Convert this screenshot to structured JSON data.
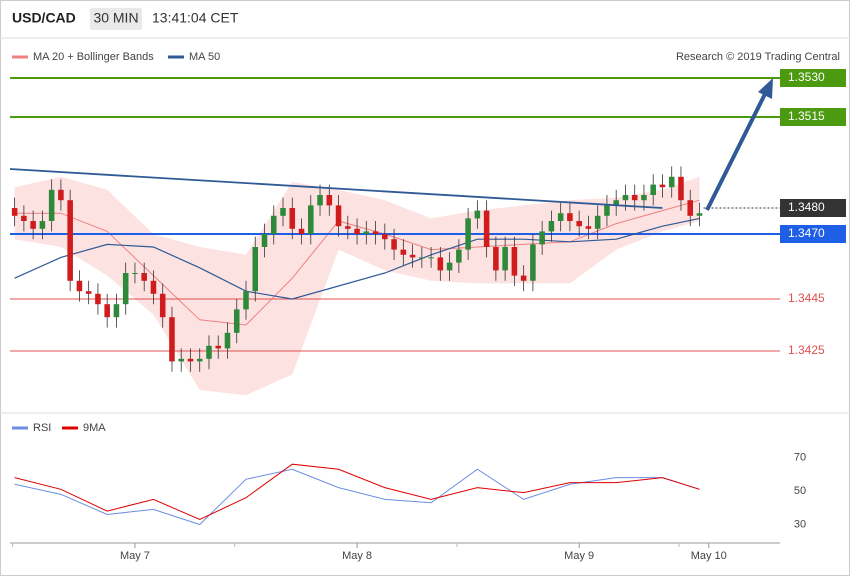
{
  "chart_data": [
    {
      "type": "candlestick",
      "title": "USD/CAD",
      "timeframe": "30 MIN",
      "time": "13:41:04 CET",
      "credit": "Research © 2019 Trading Central",
      "xlim": [
        -0.5,
        82.7
      ],
      "ylim": [
        1.3402,
        1.356
      ],
      "up_color": "#2e8a3a",
      "down_color": "#d01c1c",
      "open": [
        1.348,
        1.3477,
        1.3475,
        1.3472,
        1.3475,
        1.3487,
        1.3483,
        1.3452,
        1.3448,
        1.3447,
        1.3443,
        1.3438,
        1.3443,
        1.3455,
        1.3455,
        1.3452,
        1.3447,
        1.3438,
        1.3421,
        1.3422,
        1.3421,
        1.3422,
        1.3427,
        1.3426,
        1.3432,
        1.3441,
        1.3448,
        1.3465,
        1.347,
        1.3477,
        1.348,
        1.3472,
        1.347,
        1.3481,
        1.3485,
        1.3481,
        1.3473,
        1.3472,
        1.347,
        1.3471,
        1.347,
        1.3468,
        1.3464,
        1.3462,
        1.3461,
        1.3461,
        1.3461,
        1.3456,
        1.3459,
        1.3464,
        1.3476,
        1.3479,
        1.3465,
        1.3456,
        1.3465,
        1.3454,
        1.3452,
        1.3466,
        1.3471,
        1.3475,
        1.3478,
        1.3475,
        1.3473,
        1.3472,
        1.3477,
        1.3481,
        1.3483,
        1.3485,
        1.3483,
        1.3485,
        1.3489,
        1.3488,
        1.3492,
        1.3483,
        1.3477
      ],
      "high": [
        1.3484,
        1.3481,
        1.3479,
        1.3479,
        1.3491,
        1.3491,
        1.3487,
        1.3456,
        1.3452,
        1.3451,
        1.3447,
        1.3447,
        1.3459,
        1.3459,
        1.3459,
        1.3456,
        1.3451,
        1.3442,
        1.3426,
        1.3426,
        1.3426,
        1.3431,
        1.3431,
        1.3436,
        1.3445,
        1.3452,
        1.3469,
        1.3474,
        1.3481,
        1.3484,
        1.3484,
        1.3476,
        1.3485,
        1.3489,
        1.3489,
        1.3485,
        1.3477,
        1.3476,
        1.3475,
        1.3475,
        1.3474,
        1.3472,
        1.3468,
        1.3466,
        1.3465,
        1.3465,
        1.3465,
        1.3463,
        1.3468,
        1.348,
        1.3483,
        1.3483,
        1.3469,
        1.3469,
        1.3469,
        1.3458,
        1.347,
        1.3475,
        1.3479,
        1.3482,
        1.3482,
        1.3479,
        1.3477,
        1.3481,
        1.3485,
        1.3487,
        1.3489,
        1.3489,
        1.3489,
        1.3493,
        1.3493,
        1.3496,
        1.3496,
        1.3487,
        1.3482
      ],
      "low": [
        1.3473,
        1.3471,
        1.3468,
        1.3468,
        1.3471,
        1.3479,
        1.3448,
        1.3444,
        1.3443,
        1.3439,
        1.3434,
        1.3434,
        1.3439,
        1.3451,
        1.3448,
        1.3443,
        1.3434,
        1.3417,
        1.3417,
        1.3417,
        1.3417,
        1.3418,
        1.3422,
        1.3422,
        1.3428,
        1.3437,
        1.3444,
        1.3461,
        1.3466,
        1.3473,
        1.3468,
        1.3466,
        1.3466,
        1.3477,
        1.3477,
        1.3469,
        1.3468,
        1.3466,
        1.3466,
        1.3466,
        1.3464,
        1.346,
        1.3458,
        1.3457,
        1.3457,
        1.3457,
        1.3452,
        1.3452,
        1.3455,
        1.346,
        1.3472,
        1.3461,
        1.3452,
        1.3452,
        1.345,
        1.3448,
        1.3448,
        1.3462,
        1.3467,
        1.3471,
        1.3471,
        1.3469,
        1.3468,
        1.3468,
        1.3473,
        1.3477,
        1.3479,
        1.3479,
        1.3479,
        1.3481,
        1.3484,
        1.3484,
        1.3479,
        1.3473,
        1.3473
      ],
      "close": [
        1.3477,
        1.3475,
        1.3472,
        1.3475,
        1.3487,
        1.3483,
        1.3452,
        1.3448,
        1.3447,
        1.3443,
        1.3438,
        1.3443,
        1.3455,
        1.3455,
        1.3452,
        1.3447,
        1.3438,
        1.3421,
        1.3422,
        1.3421,
        1.3422,
        1.3427,
        1.3426,
        1.3432,
        1.3441,
        1.3448,
        1.3465,
        1.347,
        1.3477,
        1.348,
        1.3472,
        1.347,
        1.3481,
        1.3485,
        1.3481,
        1.3473,
        1.3472,
        1.347,
        1.3471,
        1.347,
        1.3468,
        1.3464,
        1.3462,
        1.3461,
        1.3461,
        1.3461,
        1.3456,
        1.3459,
        1.3464,
        1.3476,
        1.3479,
        1.3465,
        1.3456,
        1.3465,
        1.3454,
        1.3452,
        1.3466,
        1.3471,
        1.3475,
        1.3478,
        1.3475,
        1.3473,
        1.3472,
        1.3477,
        1.3481,
        1.3483,
        1.3485,
        1.3483,
        1.3485,
        1.3489,
        1.3488,
        1.3492,
        1.3483,
        1.3477,
        1.3478
      ],
      "bands": {
        "name": "MA 20 + Bollinger Bands",
        "color": "#f08080",
        "fill": "#fde2e2",
        "x": [
          0,
          5,
          10,
          15,
          20,
          25,
          30,
          35,
          40,
          45,
          50,
          55,
          60,
          65,
          70,
          74
        ],
        "values": [
          1.3478,
          1.3478,
          1.3471,
          1.3454,
          1.3437,
          1.3435,
          1.3453,
          1.3475,
          1.347,
          1.3464,
          1.3465,
          1.3466,
          1.3467,
          1.3474,
          1.3479,
          1.3483
        ],
        "upper": [
          1.3488,
          1.3492,
          1.3487,
          1.347,
          1.3465,
          1.3462,
          1.349,
          1.3487,
          1.3483,
          1.3476,
          1.3479,
          1.3481,
          1.3483,
          1.3484,
          1.3487,
          1.3492
        ],
        "lower": [
          1.3468,
          1.3465,
          1.3454,
          1.3439,
          1.341,
          1.3408,
          1.3416,
          1.3464,
          1.3456,
          1.3452,
          1.3451,
          1.3451,
          1.3451,
          1.3464,
          1.3471,
          1.3475
        ]
      },
      "series": [
        {
          "name": "MA 50",
          "color": "#2f5a96",
          "x": [
            0,
            5,
            10,
            15,
            20,
            25,
            30,
            35,
            40,
            45,
            50,
            55,
            60,
            65,
            70,
            74
          ],
          "values": [
            1.3453,
            1.3461,
            1.3466,
            1.3465,
            1.3457,
            1.3448,
            1.3445,
            1.345,
            1.3455,
            1.3462,
            1.3468,
            1.3468,
            1.3467,
            1.3468,
            1.3473,
            1.3476
          ]
        }
      ],
      "trendline": {
        "color": "#2f5a96",
        "x": [
          -0.5,
          70
        ],
        "values": [
          1.3495,
          1.348
        ]
      },
      "levels": [
        {
          "value": 1.353,
          "label": "1.3530",
          "color": "#4c9a10",
          "style": "box",
          "line": "solid"
        },
        {
          "value": 1.3515,
          "label": "1.3515",
          "color": "#4c9a10",
          "style": "box",
          "line": "solid"
        },
        {
          "value": 1.348,
          "label": "1.3480",
          "color": "#333333",
          "style": "box",
          "line": "dotted"
        },
        {
          "value": 1.347,
          "label": "1.3470",
          "color": "#1f5fe6",
          "style": "box",
          "line": "solid"
        },
        {
          "value": 1.3445,
          "label": "1.3445",
          "color": "#e05050",
          "style": "text",
          "line": "solid"
        },
        {
          "value": 1.3425,
          "label": "1.3425",
          "color": "#e05050",
          "style": "text",
          "line": "solid"
        }
      ]
    },
    {
      "type": "line",
      "xlim": [
        -0.5,
        82.7
      ],
      "ylim": [
        20,
        80
      ],
      "yticks": [
        30,
        50,
        70
      ],
      "xticks": [
        {
          "value": 13,
          "label": "May 7"
        },
        {
          "value": 37,
          "label": "May 8"
        },
        {
          "value": 61,
          "label": "May 9"
        },
        {
          "value": 75,
          "label": "May 10"
        }
      ],
      "series": [
        {
          "name": "RSI",
          "color": "#6a8fe0",
          "x": [
            0,
            5,
            10,
            15,
            20,
            25,
            30,
            35,
            40,
            45,
            50,
            55,
            60,
            65,
            70,
            74
          ],
          "values": [
            54,
            48,
            36,
            39,
            30,
            57,
            63,
            52,
            45,
            43,
            63,
            45,
            54,
            58,
            58,
            51
          ]
        },
        {
          "name": "9MA",
          "color": "#e00000",
          "x": [
            0,
            5,
            10,
            15,
            20,
            25,
            30,
            35,
            40,
            45,
            50,
            55,
            60,
            65,
            70,
            74
          ],
          "values": [
            58,
            51,
            38,
            45,
            33,
            46,
            66,
            63,
            52,
            45,
            52,
            49,
            55,
            55,
            58,
            51
          ]
        }
      ]
    }
  ]
}
